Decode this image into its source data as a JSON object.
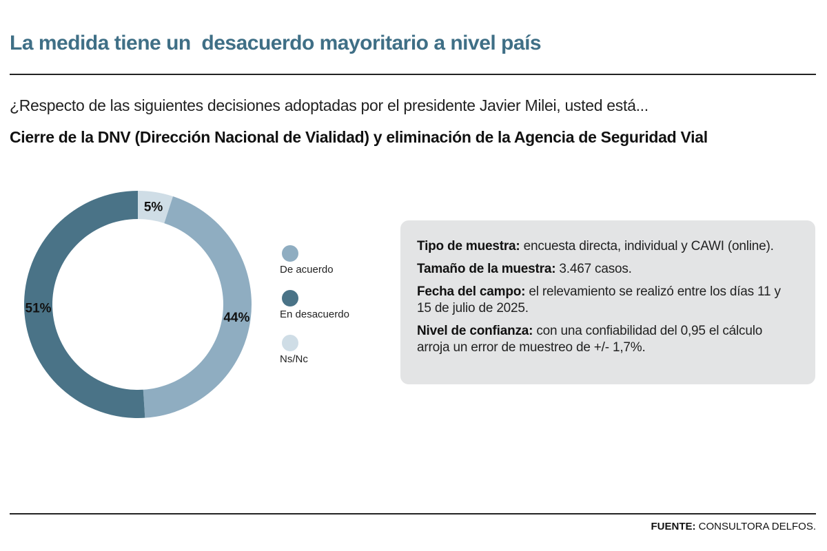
{
  "header": {
    "headline": "La medida tiene un  desacuerdo mayoritario a nivel país",
    "question": "¿Respecto de las siguientes decisiones adoptadas por el presidente Javier Milei, usted está...",
    "subtitle": "Cierre de la DNV (Dirección Nacional de Vialidad) y eliminación de la Agencia de Seguridad Vial"
  },
  "chart_data": {
    "type": "pie",
    "title": "Cierre de la DNV (Dirección Nacional de Vialidad) y eliminación de la Agencia de Seguridad Vial",
    "legend_position": "right",
    "categories": [
      "De acuerdo",
      "En desacuerdo",
      "Ns/Nc"
    ],
    "values": [
      44,
      51,
      5
    ],
    "labels": [
      "44%",
      "51%",
      "5%"
    ],
    "colors": [
      "#8fadc1",
      "#4a7387",
      "#cfdde6"
    ],
    "label_colors": [
      "#111111",
      "#111111",
      "#111111"
    ]
  },
  "info": {
    "items": [
      {
        "label": "Tipo de muestra:",
        "text": " encuesta directa, individual y CAWI (online)."
      },
      {
        "label": "Tamaño de la muestra:",
        "text": " 3.467 casos."
      },
      {
        "label": "Fecha del campo:",
        "text": " el relevamiento se realizó entre los días 11 y 15 de julio de 2025."
      },
      {
        "label": "Nivel de confianza:",
        "text": " con una confiabilidad del 0,95 el cálculo arroja un error de muestreo de +/- 1,7%."
      }
    ]
  },
  "footer": {
    "source_label": "FUENTE:",
    "source_text": " CONSULTORA DELFOS."
  }
}
